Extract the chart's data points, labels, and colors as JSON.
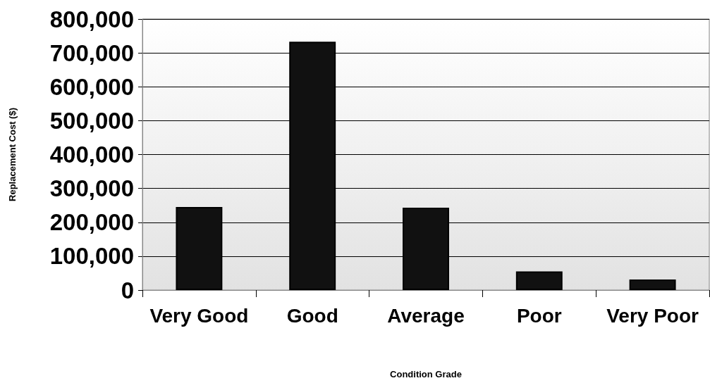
{
  "chart_data": {
    "type": "bar",
    "xlabel": "Condition Grade",
    "ylabel": "Replacement Cost ($)",
    "categories": [
      "Very Good",
      "Good",
      "Average",
      "Poor",
      "Very Poor"
    ],
    "values": [
      245000,
      733000,
      243000,
      55000,
      31000
    ],
    "color": "#111111",
    "ylim": [
      0,
      800000
    ],
    "yticks": [
      {
        "value": 0,
        "label": "0"
      },
      {
        "value": 100000,
        "label": "100,000"
      },
      {
        "value": 200000,
        "label": "200,000"
      },
      {
        "value": 300000,
        "label": "300,000"
      },
      {
        "value": 400000,
        "label": "400,000"
      },
      {
        "value": 500000,
        "label": "500,000"
      },
      {
        "value": 600000,
        "label": "600,000"
      },
      {
        "value": 700000,
        "label": "700,000"
      },
      {
        "value": 800000,
        "label": "800,000"
      }
    ],
    "grid": "y"
  }
}
